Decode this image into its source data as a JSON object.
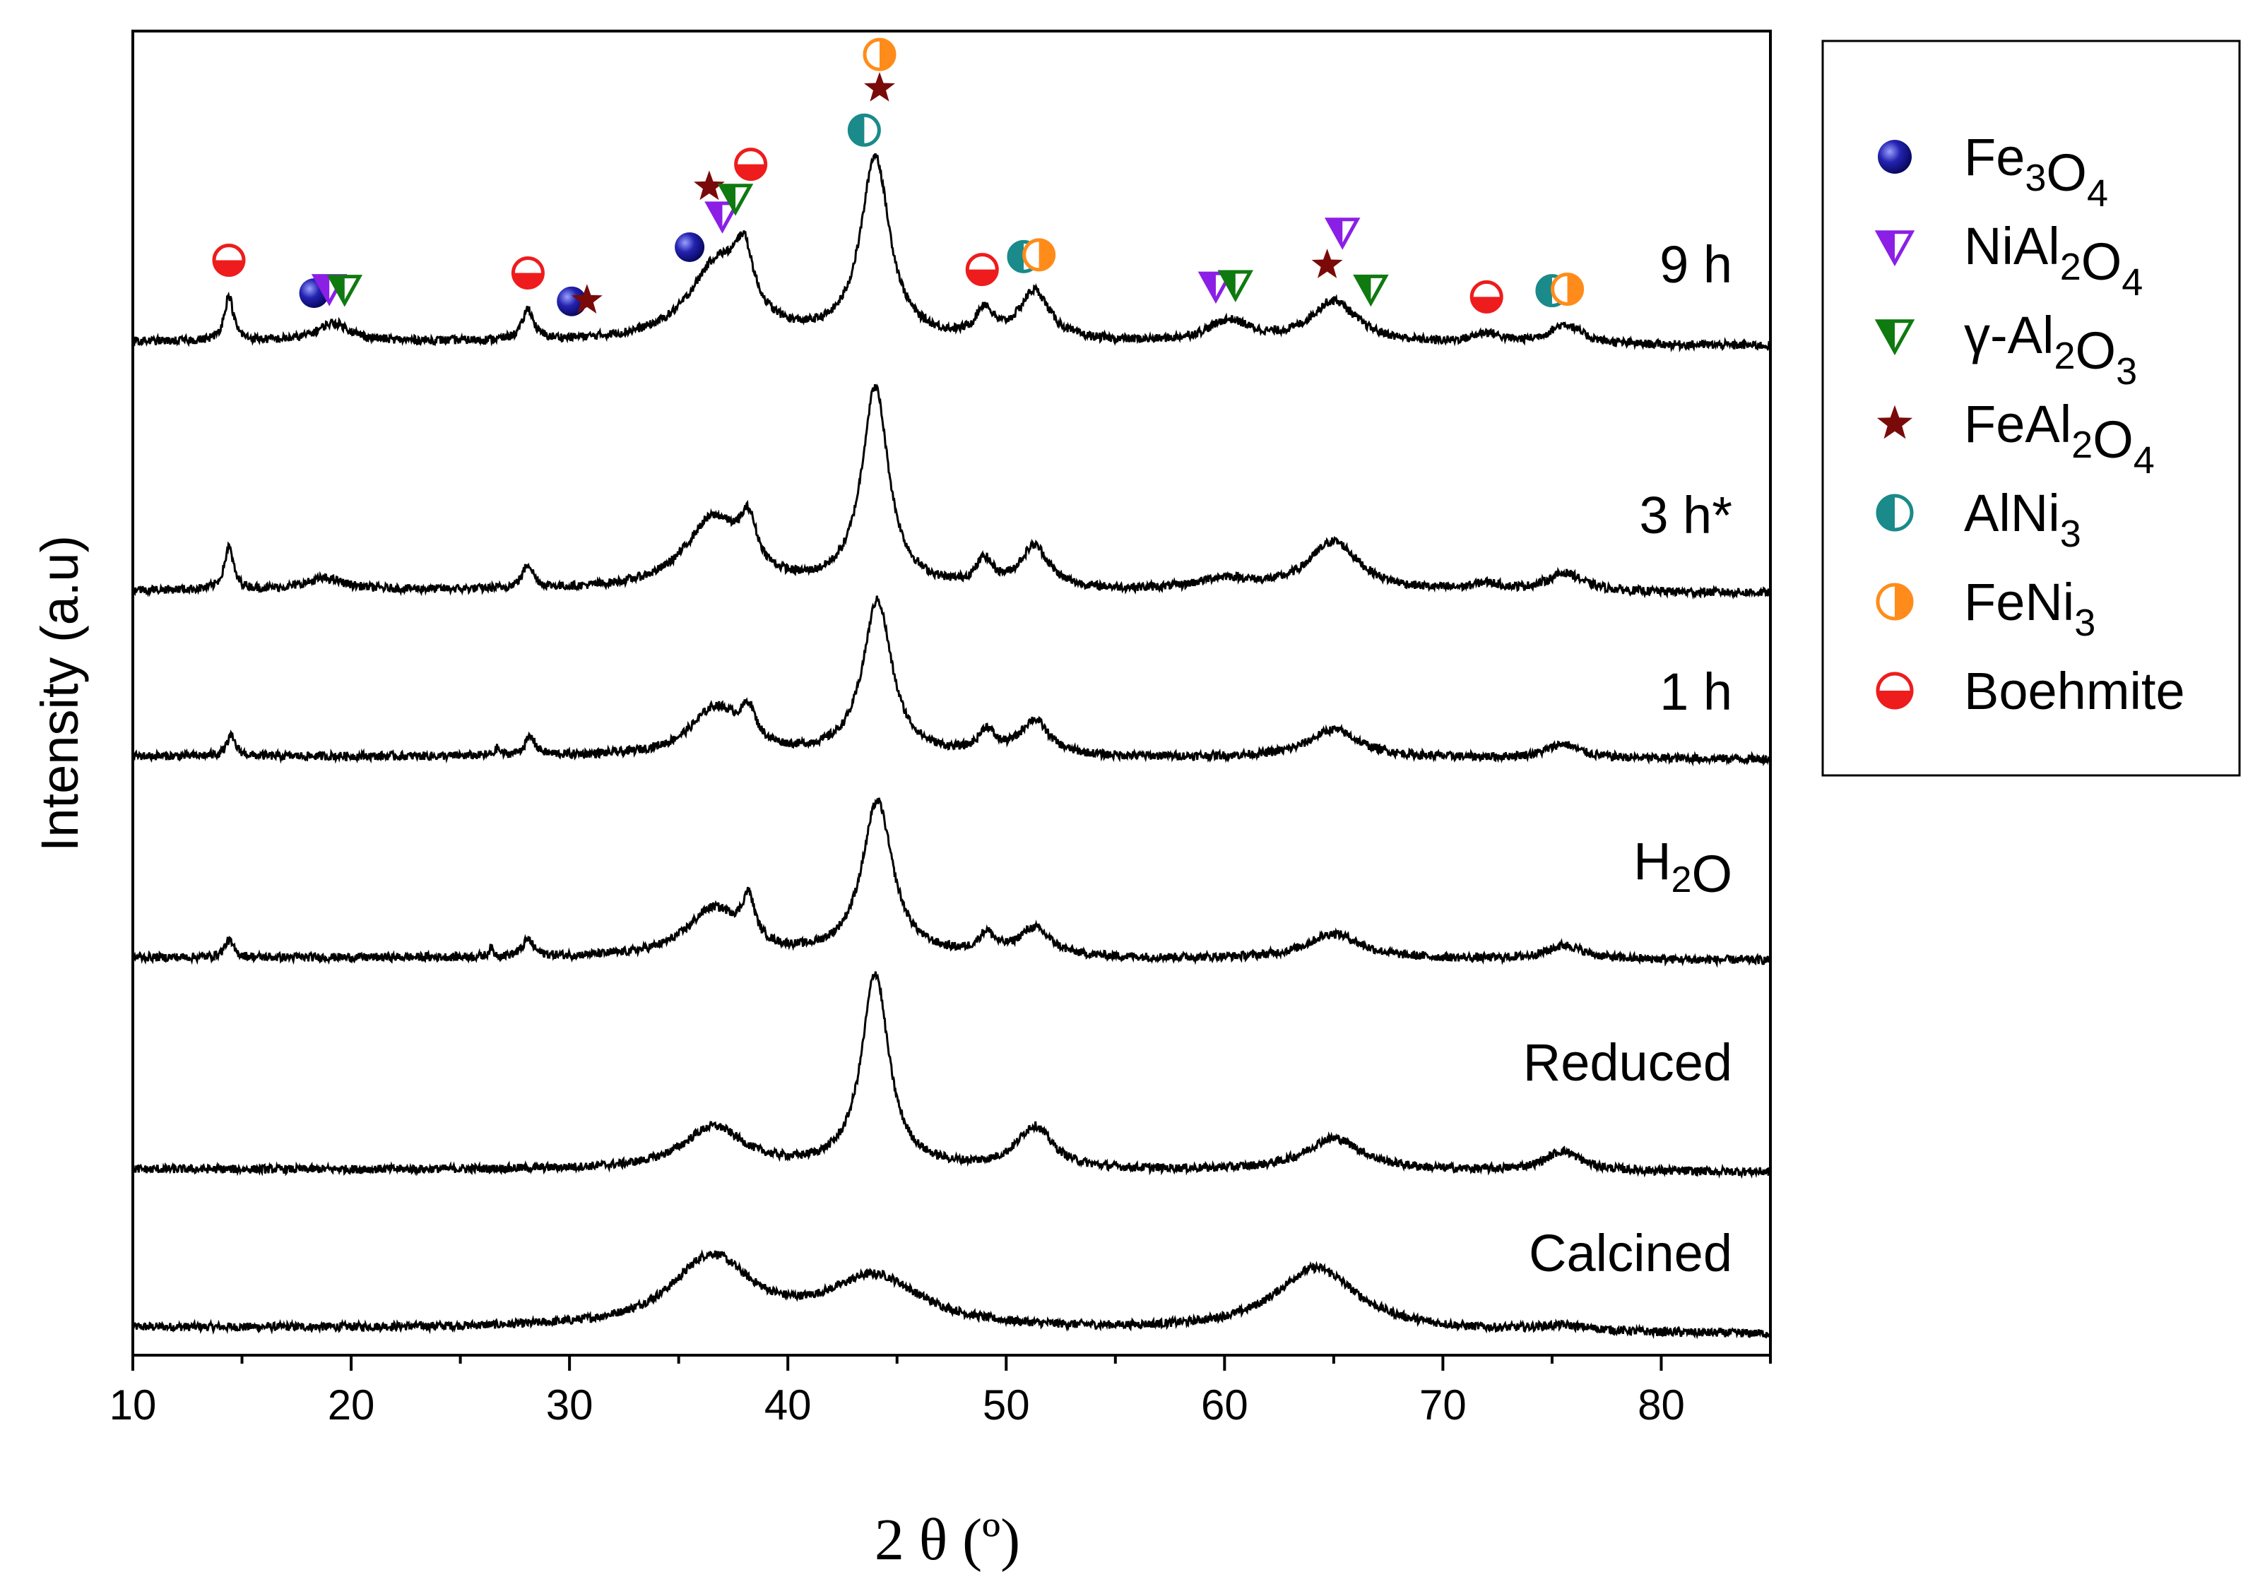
{
  "chart_data": {
    "type": "line",
    "title": "",
    "xlabel": "2 θ (º)",
    "ylabel": "Intensity (a.u)",
    "xlim": [
      10,
      85
    ],
    "xticks": [
      10,
      20,
      30,
      40,
      50,
      60,
      70,
      80
    ],
    "yticks_shown": false,
    "grid": false,
    "legend_position": "right",
    "series": [
      {
        "name": "Calcined",
        "label_parts": [
          {
            "text": "Calcined"
          }
        ],
        "baseline": 0.05,
        "end": 0.0,
        "amplitude": 1.0,
        "peaks": [
          [
            36.5,
            0.5,
            2.2
          ],
          [
            44.0,
            0.36,
            2.6
          ],
          [
            64.2,
            0.45,
            2.3
          ],
          [
            75.5,
            0.04,
            1.6
          ]
        ]
      },
      {
        "name": "Reduced",
        "label_parts": [
          {
            "text": "Reduced"
          }
        ],
        "baseline": 0.02,
        "end": 0.0,
        "amplitude": 1.0,
        "peaks": [
          [
            36.6,
            0.3,
            1.7
          ],
          [
            44.0,
            1.38,
            0.75
          ],
          [
            51.3,
            0.3,
            1.0
          ],
          [
            65.0,
            0.23,
            1.6
          ],
          [
            75.5,
            0.14,
            1.0
          ]
        ]
      },
      {
        "name": "H2O",
        "label_parts": [
          {
            "text": "H"
          },
          {
            "text": "2",
            "sub": true
          },
          {
            "text": "O"
          }
        ],
        "baseline": 0.02,
        "end": 0.0,
        "amplitude": 1.0,
        "peaks": [
          [
            14.4,
            0.12,
            0.25
          ],
          [
            28.1,
            0.12,
            0.3
          ],
          [
            26.4,
            0.06,
            0.12
          ],
          [
            36.6,
            0.34,
            1.5
          ],
          [
            38.2,
            0.3,
            0.35
          ],
          [
            44.1,
            1.1,
            0.85
          ],
          [
            49.1,
            0.14,
            0.45
          ],
          [
            51.3,
            0.2,
            0.9
          ],
          [
            65.0,
            0.18,
            1.5
          ],
          [
            75.6,
            0.1,
            1.0
          ]
        ]
      },
      {
        "name": "1 h",
        "label_parts": [
          {
            "text": "1 h"
          }
        ],
        "baseline": 0.02,
        "end": 0.0,
        "amplitude": 1.0,
        "peaks": [
          [
            14.5,
            0.14,
            0.25
          ],
          [
            28.2,
            0.13,
            0.3
          ],
          [
            26.7,
            0.05,
            0.12
          ],
          [
            36.7,
            0.34,
            1.4
          ],
          [
            38.2,
            0.22,
            0.4
          ],
          [
            44.1,
            1.1,
            0.8
          ],
          [
            49.1,
            0.16,
            0.45
          ],
          [
            51.3,
            0.25,
            0.8
          ],
          [
            65.0,
            0.2,
            1.4
          ],
          [
            75.5,
            0.1,
            0.9
          ]
        ]
      },
      {
        "name": "3 h*",
        "label_parts": [
          {
            "text": "3 h*"
          }
        ],
        "baseline": 0.02,
        "end": 0.0,
        "amplitude": 1.0,
        "peaks": [
          [
            14.4,
            0.3,
            0.25
          ],
          [
            18.8,
            0.08,
            1.1
          ],
          [
            28.1,
            0.17,
            0.3
          ],
          [
            36.6,
            0.5,
            1.6
          ],
          [
            38.2,
            0.32,
            0.45
          ],
          [
            44.0,
            1.42,
            0.75
          ],
          [
            49.0,
            0.18,
            0.45
          ],
          [
            51.3,
            0.3,
            0.8
          ],
          [
            60.0,
            0.08,
            1.5
          ],
          [
            65.0,
            0.35,
            1.4
          ],
          [
            72.0,
            0.05,
            0.8
          ],
          [
            75.6,
            0.13,
            1.0
          ]
        ]
      },
      {
        "name": "9 h",
        "label_parts": [
          {
            "text": "9 h"
          }
        ],
        "baseline": 0.03,
        "end": 0.0,
        "amplitude": 1.0,
        "peaks": [
          [
            14.4,
            0.32,
            0.25
          ],
          [
            19.2,
            0.13,
            0.9
          ],
          [
            28.1,
            0.22,
            0.3
          ],
          [
            36.8,
            0.55,
            1.6
          ],
          [
            38.0,
            0.4,
            0.5
          ],
          [
            44.0,
            1.3,
            0.8
          ],
          [
            49.0,
            0.2,
            0.45
          ],
          [
            51.3,
            0.35,
            0.85
          ],
          [
            60.2,
            0.15,
            1.2
          ],
          [
            65.0,
            0.3,
            1.3
          ],
          [
            72.0,
            0.07,
            0.8
          ],
          [
            75.6,
            0.14,
            0.9
          ]
        ]
      }
    ],
    "legend": [
      {
        "key": "fe3o4",
        "parts": [
          {
            "text": "Fe"
          },
          {
            "text": "3",
            "sub": true
          },
          {
            "text": "O"
          },
          {
            "text": "4",
            "sub": true
          }
        ]
      },
      {
        "key": "nial2o4",
        "parts": [
          {
            "text": "NiAl"
          },
          {
            "text": "2",
            "sub": true
          },
          {
            "text": "O"
          },
          {
            "text": "4",
            "sub": true
          }
        ]
      },
      {
        "key": "al2o3",
        "parts": [
          {
            "text": "γ-Al"
          },
          {
            "text": "2",
            "sub": true
          },
          {
            "text": "O"
          },
          {
            "text": "3",
            "sub": true
          }
        ]
      },
      {
        "key": "feal2o4",
        "parts": [
          {
            "text": "FeAl"
          },
          {
            "text": "2",
            "sub": true
          },
          {
            "text": "O"
          },
          {
            "text": "4",
            "sub": true
          }
        ]
      },
      {
        "key": "alni3",
        "parts": [
          {
            "text": "AlNi"
          },
          {
            "text": "3",
            "sub": true
          }
        ]
      },
      {
        "key": "feni3",
        "parts": [
          {
            "text": "FeNi"
          },
          {
            "text": "3",
            "sub": true
          }
        ]
      },
      {
        "key": "boehmite",
        "parts": [
          {
            "text": "Boehmite"
          }
        ]
      }
    ],
    "phase_markers_on_9h": [
      {
        "phase": "boehmite",
        "two_theta": 14.4
      },
      {
        "phase": "fe3o4",
        "two_theta": 18.3
      },
      {
        "phase": "nial2o4",
        "two_theta": 19.0
      },
      {
        "phase": "al2o3",
        "two_theta": 19.7
      },
      {
        "phase": "boehmite",
        "two_theta": 28.1
      },
      {
        "phase": "fe3o4",
        "two_theta": 30.1
      },
      {
        "phase": "feal2o4",
        "two_theta": 30.8
      },
      {
        "phase": "fe3o4",
        "two_theta": 35.5
      },
      {
        "phase": "feal2o4",
        "two_theta": 36.4
      },
      {
        "phase": "nial2o4",
        "two_theta": 37.0
      },
      {
        "phase": "al2o3",
        "two_theta": 37.6
      },
      {
        "phase": "boehmite",
        "two_theta": 38.3
      },
      {
        "phase": "alni3",
        "two_theta": 43.5
      },
      {
        "phase": "feal2o4",
        "two_theta": 44.2
      },
      {
        "phase": "feni3",
        "two_theta": 44.2
      },
      {
        "phase": "boehmite",
        "two_theta": 48.9
      },
      {
        "phase": "alni3",
        "two_theta": 50.8
      },
      {
        "phase": "feni3",
        "two_theta": 51.5
      },
      {
        "phase": "nial2o4",
        "two_theta": 59.6
      },
      {
        "phase": "al2o3",
        "two_theta": 60.5
      },
      {
        "phase": "feal2o4",
        "two_theta": 64.7
      },
      {
        "phase": "nial2o4",
        "two_theta": 65.4
      },
      {
        "phase": "al2o3",
        "two_theta": 66.7
      },
      {
        "phase": "boehmite",
        "two_theta": 72.0
      },
      {
        "phase": "alni3",
        "two_theta": 75.0
      },
      {
        "phase": "feni3",
        "two_theta": 75.7
      }
    ]
  },
  "colors": {
    "axis": "#000000",
    "fe3o4": "#0d0d8a",
    "nial2o4": "#8b1fe6",
    "al2o3": "#0f7a0f",
    "feal2o4": "#7a0a0a",
    "alni3": "#1a8a8a",
    "feni3": "#ff8c1a",
    "boehmite": "#ee1c1c"
  }
}
